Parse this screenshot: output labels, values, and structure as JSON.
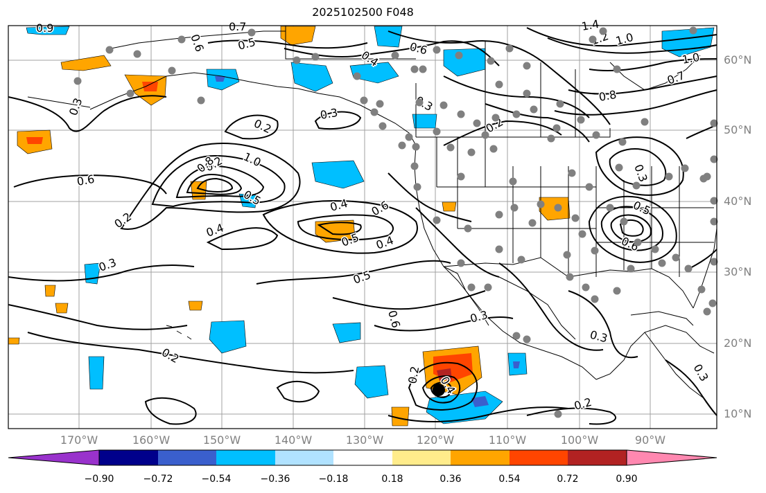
{
  "title": "2025102500 F048",
  "lat_labels": [
    "60°N",
    "50°N",
    "40°N",
    "30°N",
    "20°N",
    "10°N"
  ],
  "lon_labels": [
    "170°W",
    "160°W",
    "150°W",
    "140°W",
    "130°W",
    "120°W",
    "110°W",
    "100°W",
    "90°W"
  ],
  "contour_labels": [
    "0.9",
    "0.7",
    "0.6",
    "0.5",
    "0.4",
    "0.6",
    "0.3",
    "0.2",
    "0.3",
    "0.2",
    "0.8",
    "1.0",
    "0.5",
    "0.6",
    "0.2",
    "0.4",
    "0.3",
    "0.3",
    "0.4",
    "0.6",
    "0.5",
    "0.4",
    "0.5",
    "0.6",
    "0.3",
    "0.2",
    "0.2",
    "0.3",
    "0.4",
    "0.2",
    "1.4",
    "1.2",
    "1.0",
    "1.0",
    "0.7",
    "0.8",
    "0.3",
    "0.5",
    "0.6",
    "0.2",
    "0.3"
  ],
  "colorbar": {
    "tick_labels": [
      "−0.90",
      "−0.72",
      "−0.54",
      "−0.36",
      "−0.18",
      "0.18",
      "0.36",
      "0.54",
      "0.72",
      "0.90"
    ],
    "colors": [
      "#9932cc",
      "#00008b",
      "#3a5fcd",
      "#00bfff",
      "#b0e2ff",
      "#ffffff",
      "#ffec8b",
      "#ffa500",
      "#ff4500",
      "#b22222",
      "#ff88b0"
    ]
  },
  "colors": {
    "neg_light": "#00bfff",
    "neg_mid": "#3a5fcd",
    "pos_light": "#ffa500",
    "pos_mid": "#ff4500",
    "pos_dark": "#b22222",
    "station_dot": "#808080",
    "grid": "#a0a0a0"
  }
}
